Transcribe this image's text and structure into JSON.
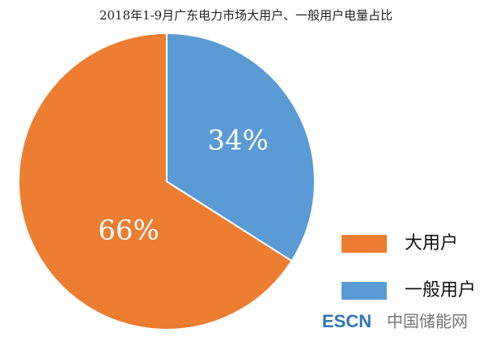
{
  "chart_data": {
    "type": "pie",
    "title": "2018年1-9月广东电力市场大用户、一般用户电量占比",
    "categories": [
      "大用户",
      "一般用户"
    ],
    "values": [
      66,
      34
    ],
    "value_labels": [
      "66%",
      "34%"
    ],
    "colors": [
      "#ED7D31",
      "#5B9BD5"
    ]
  },
  "watermark": {
    "brand": "ESCN",
    "site": "中国储能网"
  }
}
